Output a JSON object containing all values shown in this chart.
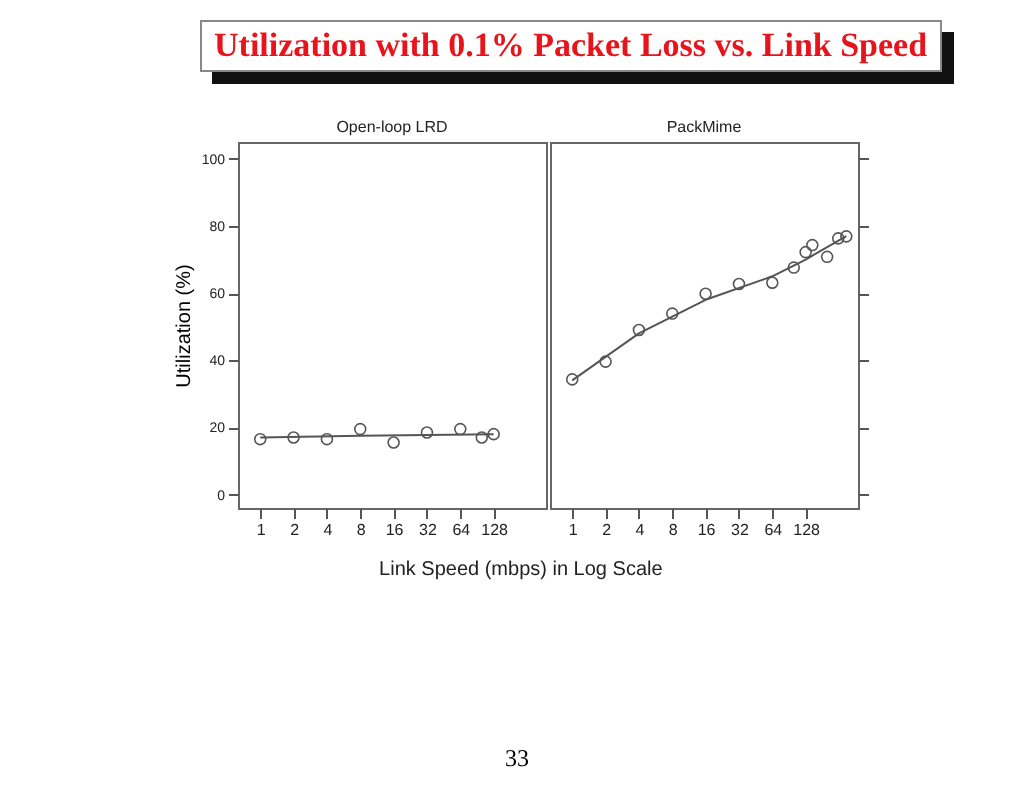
{
  "chart_data": [
    {
      "type": "scatter",
      "title": "Utilization with 0.1% Packet Loss vs. Link Speed",
      "subtitle": "Open-loop LRD",
      "xlabel": "Link Speed (mbps) in Log Scale",
      "ylabel": "Utilization (%)",
      "annotations": [
        "33"
      ],
      "log": "x",
      "grid": false,
      "xlim": [
        0.63,
        380
      ],
      "xticks": [
        1,
        2,
        4,
        8,
        16,
        32,
        64,
        128
      ],
      "ylim": [
        -4,
        105
      ],
      "yticks": [
        0,
        20,
        40,
        60,
        80,
        100
      ],
      "series": [
        {
          "color": "#555555",
          "marker": "circle",
          "x": [
            1,
            2,
            4,
            8,
            16,
            32,
            64,
            100,
            128
          ],
          "values": [
            16.5,
            17,
            16.5,
            19.5,
            15.5,
            18.5,
            19.5,
            17,
            18
          ]
        },
        {
          "type": "line",
          "color": "#555555",
          "x": [
            1,
            8,
            128
          ],
          "values": [
            17,
            17.5,
            18
          ]
        }
      ]
    },
    {
      "type": "scatter",
      "subtitle": "PackMime",
      "log": "x",
      "grid": false,
      "tick_labels": "x",
      "xlim": [
        0.63,
        380
      ],
      "xticks": [
        1,
        2,
        4,
        8,
        16,
        32,
        64,
        128
      ],
      "ylim": [
        -4,
        105
      ],
      "yticks": [
        0,
        20,
        40,
        60,
        80,
        100
      ],
      "series": [
        {
          "color": "#555555",
          "marker": "circle",
          "x": [
            1,
            2,
            4,
            8,
            16,
            32,
            64,
            100,
            128,
            147,
            200,
            252,
            298
          ],
          "values": [
            34.3,
            39.6,
            49,
            53.9,
            59.8,
            62.7,
            63.1,
            67.6,
            72.2,
            74.3,
            70.8,
            76.3,
            76.9
          ]
        },
        {
          "type": "line",
          "color": "#555555",
          "x": [
            1,
            4,
            16,
            64,
            128,
            298
          ],
          "values": [
            34,
            48,
            58,
            65,
            70,
            77
          ]
        }
      ]
    }
  ]
}
